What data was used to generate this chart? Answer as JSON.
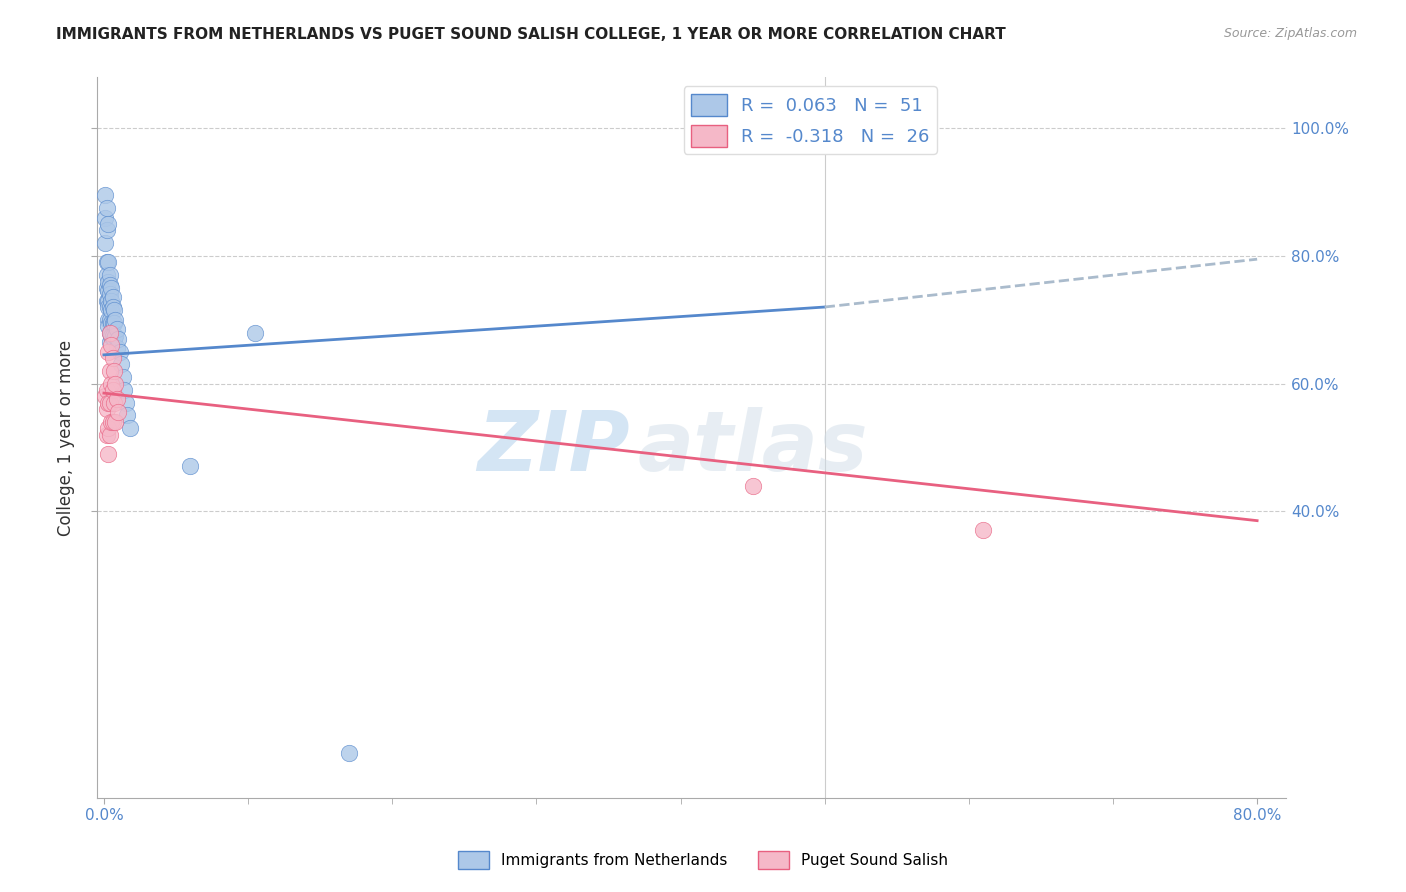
{
  "title": "IMMIGRANTS FROM NETHERLANDS VS PUGET SOUND SALISH COLLEGE, 1 YEAR OR MORE CORRELATION CHART",
  "source": "Source: ZipAtlas.com",
  "ylabel": "College, 1 year or more",
  "legend_label1": "Immigrants from Netherlands",
  "legend_label2": "Puget Sound Salish",
  "R1": 0.063,
  "N1": 51,
  "R2": -0.318,
  "N2": 26,
  "color_blue": "#adc8e8",
  "color_pink": "#f5b8c8",
  "color_line_blue": "#5588cc",
  "color_line_pink": "#e86080",
  "color_line_gray": "#aabbcc",
  "watermark_zip": "ZIP",
  "watermark_atlas": "atlas",
  "blue_trendline_x": [
    0.0,
    0.5
  ],
  "blue_trendline_y": [
    0.645,
    0.72
  ],
  "gray_trendline_x": [
    0.5,
    0.8
  ],
  "gray_trendline_y": [
    0.72,
    0.795
  ],
  "pink_trendline_x": [
    0.0,
    0.8
  ],
  "pink_trendline_y": [
    0.585,
    0.385
  ],
  "blue_x": [
    0.001,
    0.001,
    0.001,
    0.002,
    0.002,
    0.002,
    0.002,
    0.002,
    0.002,
    0.003,
    0.003,
    0.003,
    0.003,
    0.003,
    0.003,
    0.003,
    0.003,
    0.004,
    0.004,
    0.004,
    0.004,
    0.004,
    0.004,
    0.004,
    0.005,
    0.005,
    0.005,
    0.005,
    0.005,
    0.006,
    0.006,
    0.006,
    0.006,
    0.007,
    0.007,
    0.007,
    0.008,
    0.008,
    0.009,
    0.009,
    0.01,
    0.011,
    0.012,
    0.013,
    0.014,
    0.015,
    0.016,
    0.018,
    0.06,
    0.105,
    0.17
  ],
  "blue_y": [
    0.895,
    0.86,
    0.82,
    0.875,
    0.84,
    0.79,
    0.77,
    0.75,
    0.73,
    0.85,
    0.79,
    0.76,
    0.745,
    0.73,
    0.72,
    0.7,
    0.69,
    0.77,
    0.755,
    0.74,
    0.72,
    0.7,
    0.68,
    0.665,
    0.75,
    0.73,
    0.715,
    0.695,
    0.675,
    0.735,
    0.72,
    0.695,
    0.675,
    0.715,
    0.695,
    0.67,
    0.7,
    0.675,
    0.685,
    0.655,
    0.67,
    0.65,
    0.63,
    0.61,
    0.59,
    0.57,
    0.55,
    0.53,
    0.47,
    0.68,
    0.02
  ],
  "pink_x": [
    0.001,
    0.002,
    0.002,
    0.002,
    0.003,
    0.003,
    0.003,
    0.003,
    0.004,
    0.004,
    0.004,
    0.004,
    0.005,
    0.005,
    0.005,
    0.006,
    0.006,
    0.006,
    0.007,
    0.007,
    0.008,
    0.008,
    0.009,
    0.01,
    0.45,
    0.61
  ],
  "pink_y": [
    0.58,
    0.59,
    0.56,
    0.52,
    0.65,
    0.57,
    0.53,
    0.49,
    0.68,
    0.62,
    0.57,
    0.52,
    0.66,
    0.6,
    0.54,
    0.64,
    0.59,
    0.54,
    0.62,
    0.57,
    0.6,
    0.54,
    0.575,
    0.555,
    0.44,
    0.37
  ],
  "xlim": [
    -0.005,
    0.82
  ],
  "ylim": [
    -0.05,
    1.08
  ],
  "yticks": [
    0.4,
    0.6,
    0.8,
    1.0
  ],
  "ytick_labels": [
    "40.0%",
    "60.0%",
    "80.0%",
    "100.0%"
  ],
  "xtick_left": "0.0%",
  "xtick_right": "80.0%"
}
